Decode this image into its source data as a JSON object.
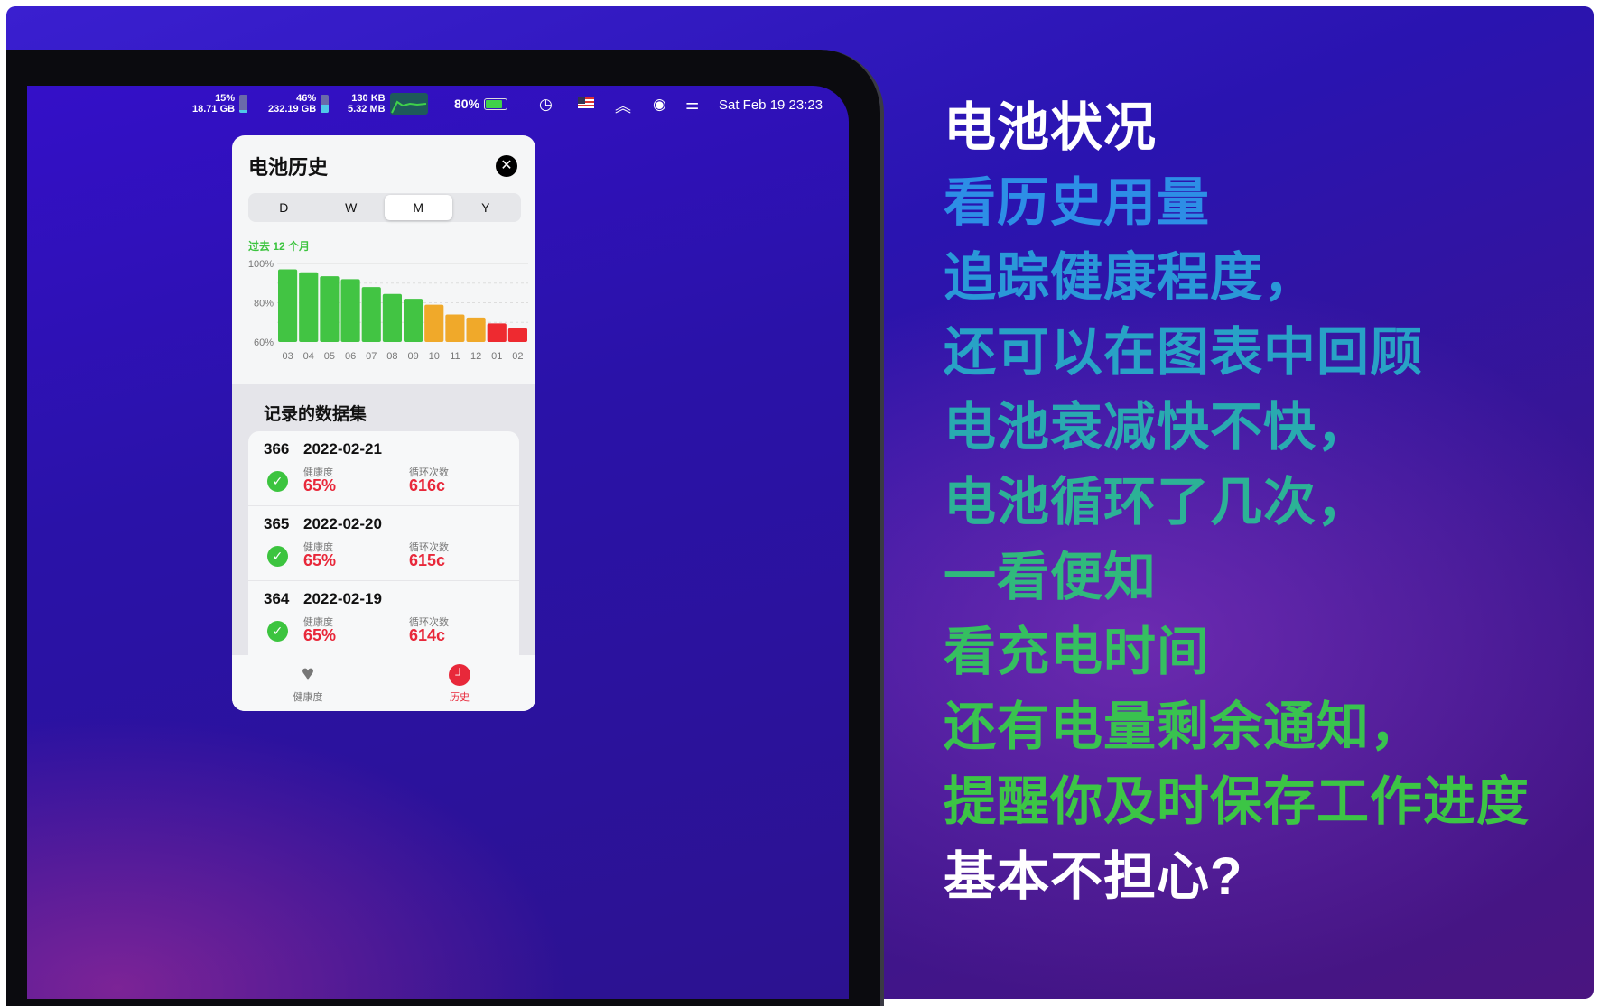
{
  "menubar": {
    "mem_pct": "15%",
    "mem_size": "18.71 GB",
    "mem_fill": 0.15,
    "disk_pct": "46%",
    "disk_size": "232.19 GB",
    "disk_fill": 0.46,
    "net_up": "130 KB",
    "net_down": "5.32 MB",
    "battery_pct": "80%",
    "battery_fill": 0.8,
    "icons": [
      "time-machine-icon",
      "us-flag-icon",
      "wifi-icon",
      "user-icon",
      "control-center-icon"
    ],
    "datetime": "Sat Feb 19  23:23"
  },
  "popup": {
    "title": "电池历史",
    "close_icon": "close-icon",
    "segments": [
      "D",
      "W",
      "M",
      "Y"
    ],
    "selected_segment": "M",
    "period": "过去 12 个月",
    "list_title": "记录的数据集",
    "health_label": "健康度",
    "cycles_label": "循环次数",
    "records": [
      {
        "id": "366",
        "date": "2022-02-21",
        "health": "65%",
        "cycles": "616c"
      },
      {
        "id": "365",
        "date": "2022-02-20",
        "health": "65%",
        "cycles": "615c"
      },
      {
        "id": "364",
        "date": "2022-02-19",
        "health": "65%",
        "cycles": "614c"
      }
    ],
    "tabs": [
      {
        "label": "健康度",
        "icon": "heart-bolt-icon"
      },
      {
        "label": "历史",
        "icon": "clock-icon",
        "active": true
      }
    ]
  },
  "chart_data": {
    "type": "bar",
    "categories": [
      "03",
      "04",
      "05",
      "06",
      "07",
      "08",
      "09",
      "10",
      "11",
      "12",
      "01",
      "02"
    ],
    "values": [
      97,
      95.5,
      93.5,
      92,
      88,
      84.5,
      82,
      79,
      74,
      72.5,
      69.5,
      67
    ],
    "ylim": [
      60,
      100
    ],
    "yticks": [
      "100%",
      "80%",
      "60%"
    ],
    "grid": true,
    "colors": {
      "good": "#42c443",
      "warn": "#f0a92a",
      "bad": "#ee2a30"
    }
  },
  "promo": {
    "lines": [
      {
        "text": "电池状况",
        "color": "#ffffff"
      },
      {
        "text": "看历史用量",
        "color": "#2d8ee6"
      },
      {
        "text": "追踪健康程度，",
        "color": "#2a98d8"
      },
      {
        "text": "还可以在图表中回顾",
        "color": "#28a2c6"
      },
      {
        "text": "电池衰减快不快，",
        "color": "#29aab0"
      },
      {
        "text": "电池循环了几次，",
        "color": "#2cb296"
      },
      {
        "text": "一看便知",
        "color": "#30b97c"
      },
      {
        "text": "看充电时间",
        "color": "#35bf60"
      },
      {
        "text": "还有电量剩余通知，",
        "color": "#39c24f"
      },
      {
        "text": "提醒你及时保存工作进度",
        "color": "#3cc545"
      },
      {
        "text": "基本不担心?",
        "color": "#ffffff"
      }
    ]
  }
}
